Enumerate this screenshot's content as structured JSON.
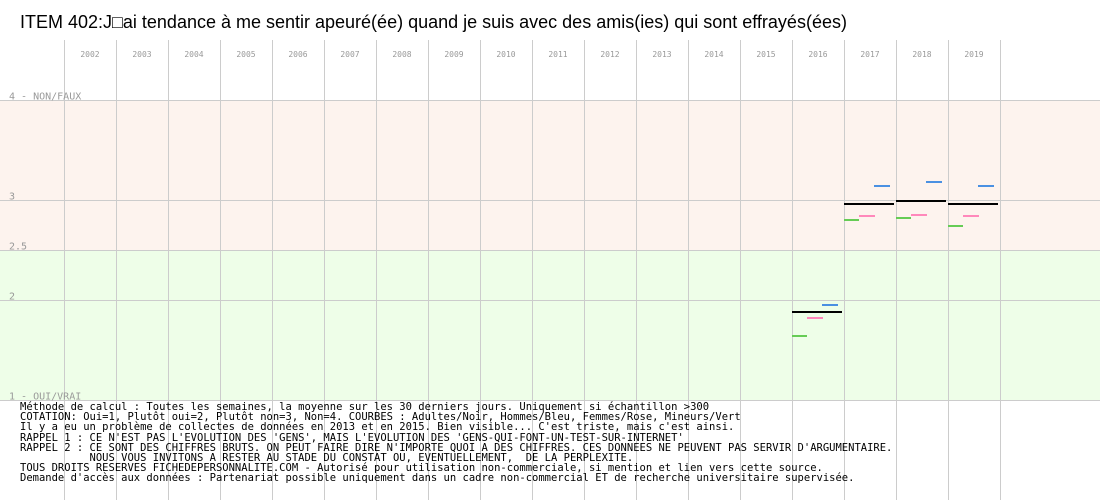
{
  "chart_data": {
    "type": "line",
    "title": "ITEM 402:J□ai tendance à me sentir apeuré(ée) quand je suis avec des amis(ies) qui sont effrayés(ées)",
    "categories": [
      "2002",
      "2003",
      "2004",
      "2005",
      "2006",
      "2007",
      "2008",
      "2009",
      "2010",
      "2011",
      "2012",
      "2013",
      "2014",
      "2015",
      "2016",
      "2017",
      "2018",
      "2019"
    ],
    "y_ticks": [
      {
        "value": 4,
        "label": "4 - NON/FAUX"
      },
      {
        "value": 3,
        "label": "3"
      },
      {
        "value": 2.5,
        "label": "2.5"
      },
      {
        "value": 2,
        "label": "2"
      },
      {
        "value": 1,
        "label": "1 - OUI/VRAI"
      }
    ],
    "ylim": [
      1,
      4
    ],
    "grid": true,
    "bands": [
      {
        "from": 2.5,
        "to": 4,
        "color": "#fdf3ee"
      },
      {
        "from": 1,
        "to": 2.5,
        "color": "#eefee8"
      }
    ],
    "series": [
      {
        "name": "Adultes",
        "color": "#000000",
        "values": [
          null,
          null,
          null,
          null,
          null,
          null,
          null,
          null,
          null,
          null,
          null,
          null,
          null,
          null,
          1.88,
          2.96,
          2.99,
          2.96
        ]
      },
      {
        "name": "Hommes",
        "color": "#4a90e2",
        "values": [
          null,
          null,
          null,
          null,
          null,
          null,
          null,
          null,
          null,
          null,
          null,
          null,
          null,
          null,
          1.95,
          3.14,
          3.18,
          3.14
        ]
      },
      {
        "name": "Femmes",
        "color": "#ff88bb",
        "values": [
          null,
          null,
          null,
          null,
          null,
          null,
          null,
          null,
          null,
          null,
          null,
          null,
          null,
          null,
          1.82,
          2.84,
          2.85,
          2.84
        ]
      },
      {
        "name": "Mineurs",
        "color": "#66cc55",
        "values": [
          null,
          null,
          null,
          null,
          null,
          null,
          null,
          null,
          null,
          null,
          null,
          null,
          null,
          null,
          1.64,
          2.8,
          2.82,
          2.74
        ]
      }
    ]
  },
  "notes": [
    "Méthode de calcul : Toutes les semaines, la moyenne sur les 30 derniers jours. Uniquement si échantillon >300",
    "COTATION: Oui=1, Plutôt oui=2, Plutôt non=3, Non=4. COURBES : Adultes/Noir, Hommes/Bleu, Femmes/Rose, Mineurs/Vert",
    "Il y a eu un problème de collectes de données en 2013 et en 2015. Bien visible... C'est triste, mais c'est ainsi.",
    "RAPPEL 1 : CE N'EST PAS L'EVOLUTION DES 'GENS', MAIS L'EVOLUTION DES 'GENS-QUI-FONT-UN-TEST-SUR-INTERNET'",
    "RAPPEL 2 : CE SONT DES CHIFFRES BRUTS. ON PEUT FAIRE DIRE N'IMPORTE QUOI A DES CHIFFRES. CES DONNEES NE PEUVENT PAS SERVIR D'ARGUMENTAIRE.",
    "           NOUS VOUS INVITONS A RESTER AU STADE DU CONSTAT OU, EVENTUELLEMENT,  DE LA PERPLEXITE.",
    "TOUS DROITS RESERVES FICHEDEPERSONNALITE.COM - Autorisé pour utilisation non-commerciale, si mention et lien vers cette source.",
    "Demande d'accès aux données : Partenariat possible uniquement dans un cadre non-commercial ET de recherche universitaire supervisée."
  ]
}
